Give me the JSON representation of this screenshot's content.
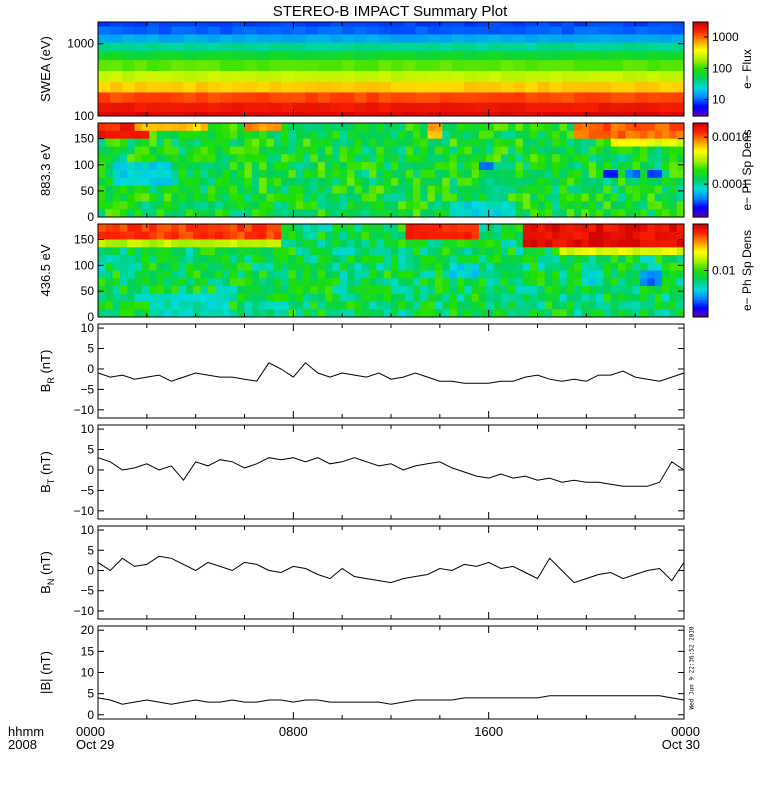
{
  "title": "STEREO-B IMPACT Summary Plot",
  "colors": {
    "axis": "#000000",
    "trace": "#000000",
    "background": "#ffffff"
  },
  "colormap": [
    "#5a00b4",
    "#0000ff",
    "#0088ff",
    "#00dcdc",
    "#00d060",
    "#22e000",
    "#aaf000",
    "#ffff00",
    "#ff9900",
    "#ff2200",
    "#cc0000"
  ],
  "stamp": "Wed Jun  9 22:36:52 2010",
  "time_axis": {
    "corner_top": "hhmm",
    "corner_bottom": "2008",
    "ticks": [
      {
        "label": "0000",
        "sub": "Oct 29",
        "hours": 0
      },
      {
        "label": "0800",
        "sub": "",
        "hours": 8
      },
      {
        "label": "1600",
        "sub": "",
        "hours": 16
      },
      {
        "label": "0000",
        "sub": "Oct 30",
        "hours": 24
      }
    ]
  },
  "chart_data": [
    {
      "type": "heatmap",
      "ylabel": "SWEA (eV)",
      "ylog": true,
      "ylim": [
        100,
        2000
      ],
      "yticks": [
        {
          "v": 1000,
          "label": "1000"
        },
        {
          "v": 100,
          "label": "100"
        }
      ],
      "colorbar": {
        "label": "e− Flux",
        "log": true,
        "range": [
          3,
          3000
        ],
        "ticks": [
          {
            "v": 1000,
            "label": "1000"
          },
          {
            "v": 100,
            "label": "100"
          },
          {
            "v": 10,
            "label": "10"
          }
        ]
      },
      "energy_profile": [
        {
          "energy": 2000,
          "value": 0.15
        },
        {
          "energy": 1500,
          "value": 0.17
        },
        {
          "energy": 1200,
          "value": 0.24
        },
        {
          "energy": 900,
          "value": 0.36
        },
        {
          "energy": 700,
          "value": 0.45
        },
        {
          "energy": 500,
          "value": 0.54
        },
        {
          "energy": 350,
          "value": 0.63
        },
        {
          "energy": 250,
          "value": 0.75
        },
        {
          "energy": 180,
          "value": 0.87
        },
        {
          "energy": 130,
          "value": 0.93
        },
        {
          "energy": 100,
          "value": 0.97
        }
      ]
    },
    {
      "type": "heatmap",
      "ylabel": "883.3 eV",
      "ylim": [
        0,
        180
      ],
      "yticks": [
        {
          "v": 150,
          "label": "150"
        },
        {
          "v": 100,
          "label": "100"
        },
        {
          "v": 50,
          "label": "50"
        },
        {
          "v": 0,
          "label": "0"
        }
      ],
      "colorbar": {
        "label": "e− Ph Sp Dens",
        "log": true,
        "range": [
          2e-05,
          0.002
        ],
        "ticks": [
          {
            "v": 0.001,
            "label": "0.0010"
          },
          {
            "v": 0.0001,
            "label": "0.0001"
          }
        ]
      },
      "base_level": 0.45,
      "features": [
        {
          "t0": 0,
          "t1": 2.0,
          "a0": 150,
          "a1": 180,
          "value": 0.92
        },
        {
          "t0": 1.5,
          "t1": 4.5,
          "a0": 160,
          "a1": 180,
          "value": 0.75
        },
        {
          "t0": 6.0,
          "t1": 7.5,
          "a0": 165,
          "a1": 180,
          "value": 0.8
        },
        {
          "t0": 13.5,
          "t1": 14.2,
          "a0": 155,
          "a1": 180,
          "value": 0.78
        },
        {
          "t0": 19.5,
          "t1": 24,
          "a0": 150,
          "a1": 180,
          "value": 0.85
        },
        {
          "t0": 21.0,
          "t1": 24,
          "a0": 130,
          "a1": 150,
          "value": 0.68
        },
        {
          "t0": 15.5,
          "t1": 16.3,
          "a0": 85,
          "a1": 110,
          "value": 0.15
        },
        {
          "t0": 20.8,
          "t1": 21.4,
          "a0": 70,
          "a1": 95,
          "value": 0.15
        },
        {
          "t0": 21.7,
          "t1": 22.3,
          "a0": 72,
          "a1": 92,
          "value": 0.18
        },
        {
          "t0": 22.6,
          "t1": 23.2,
          "a0": 70,
          "a1": 95,
          "value": 0.15
        },
        {
          "t0": 0.5,
          "t1": 3.0,
          "a0": 60,
          "a1": 100,
          "value": 0.3
        },
        {
          "t0": 14.5,
          "t1": 17.0,
          "a0": 0,
          "a1": 30,
          "value": 0.3
        }
      ]
    },
    {
      "type": "heatmap",
      "ylabel": "436.5 eV",
      "ylim": [
        0,
        180
      ],
      "yticks": [
        {
          "v": 150,
          "label": "150"
        },
        {
          "v": 100,
          "label": "100"
        },
        {
          "v": 50,
          "label": "50"
        },
        {
          "v": 0,
          "label": "0"
        }
      ],
      "colorbar": {
        "label": "e− Ph Sp Dens",
        "log": true,
        "range": [
          0.002,
          0.05
        ],
        "ticks": [
          {
            "v": 0.01,
            "label": "0.01"
          }
        ]
      },
      "base_level": 0.42,
      "features": [
        {
          "t0": 0,
          "t1": 7.5,
          "a0": 155,
          "a1": 180,
          "value": 0.88
        },
        {
          "t0": 0,
          "t1": 7.5,
          "a0": 140,
          "a1": 155,
          "value": 0.62
        },
        {
          "t0": 12.5,
          "t1": 15.5,
          "a0": 150,
          "a1": 180,
          "value": 0.9
        },
        {
          "t0": 17.5,
          "t1": 24,
          "a0": 140,
          "a1": 180,
          "value": 0.95
        },
        {
          "t0": 19.0,
          "t1": 24,
          "a0": 120,
          "a1": 140,
          "value": 0.66
        },
        {
          "t0": 14.5,
          "t1": 15.5,
          "a0": 70,
          "a1": 100,
          "value": 0.3
        },
        {
          "t0": 19.8,
          "t1": 20.6,
          "a0": 65,
          "a1": 95,
          "value": 0.3
        },
        {
          "t0": 22.2,
          "t1": 23.0,
          "a0": 65,
          "a1": 95,
          "value": 0.2
        },
        {
          "t0": 2.0,
          "t1": 5.5,
          "a0": 0,
          "a1": 40,
          "value": 0.33
        }
      ]
    },
    {
      "type": "line",
      "ylabel": "B",
      "ysub": "R",
      "yunit": "(nT)",
      "ylim": [
        -12,
        11
      ],
      "yticks": [
        {
          "v": 10,
          "label": "10"
        },
        {
          "v": 5,
          "label": "5"
        },
        {
          "v": 0,
          "label": "0"
        },
        {
          "v": -5,
          "label": "−5"
        },
        {
          "v": -10,
          "label": "−10"
        }
      ],
      "x": [
        0,
        0.5,
        1,
        1.5,
        2,
        2.5,
        3,
        3.5,
        4,
        4.5,
        5,
        5.5,
        6,
        6.5,
        7,
        7.5,
        8,
        8.5,
        9,
        9.5,
        10,
        10.5,
        11,
        11.5,
        12,
        12.5,
        13,
        13.5,
        14,
        14.5,
        15,
        15.5,
        16,
        16.5,
        17,
        17.5,
        18,
        18.5,
        19,
        19.5,
        20,
        20.5,
        21,
        21.5,
        22,
        22.5,
        23,
        23.5,
        24
      ],
      "y": [
        -1,
        -2,
        -1.5,
        -2.5,
        -2,
        -1.5,
        -3,
        -2,
        -1,
        -1.5,
        -2,
        -2,
        -2.5,
        -3,
        1.5,
        0,
        -2,
        1.5,
        -1,
        -2,
        -1,
        -1.5,
        -2,
        -1,
        -2.5,
        -2,
        -1,
        -2,
        -3,
        -3,
        -3.5,
        -3.5,
        -3.5,
        -3,
        -3,
        -2,
        -1.5,
        -2.5,
        -3,
        -2.5,
        -3,
        -1.5,
        -1.5,
        -0.5,
        -2,
        -2.5,
        -3,
        -2,
        -1
      ]
    },
    {
      "type": "line",
      "ylabel": "B",
      "ysub": "T",
      "yunit": "(nT)",
      "ylim": [
        -12,
        11
      ],
      "yticks": [
        {
          "v": 10,
          "label": "10"
        },
        {
          "v": 5,
          "label": "5"
        },
        {
          "v": 0,
          "label": "0"
        },
        {
          "v": -5,
          "label": "−5"
        },
        {
          "v": -10,
          "label": "−10"
        }
      ],
      "x": [
        0,
        0.5,
        1,
        1.5,
        2,
        2.5,
        3,
        3.5,
        4,
        4.5,
        5,
        5.5,
        6,
        6.5,
        7,
        7.5,
        8,
        8.5,
        9,
        9.5,
        10,
        10.5,
        11,
        11.5,
        12,
        12.5,
        13,
        13.5,
        14,
        14.5,
        15,
        15.5,
        16,
        16.5,
        17,
        17.5,
        18,
        18.5,
        19,
        19.5,
        20,
        20.5,
        21,
        21.5,
        22,
        22.5,
        23,
        23.5,
        24
      ],
      "y": [
        3,
        2,
        0,
        0.5,
        1.5,
        0,
        1,
        -2.5,
        2,
        1,
        2.5,
        2,
        0.5,
        1.5,
        3,
        2.5,
        3,
        2,
        3,
        1.5,
        2,
        3,
        2,
        1,
        1.5,
        0,
        1,
        1.5,
        2,
        0.5,
        -0.5,
        -1.5,
        -2,
        -1,
        -2,
        -1.5,
        -2.5,
        -2,
        -3,
        -2.5,
        -3,
        -3,
        -3.5,
        -4,
        -4,
        -4,
        -3,
        2,
        0
      ]
    },
    {
      "type": "line",
      "ylabel": "B",
      "ysub": "N",
      "yunit": "(nT)",
      "ylim": [
        -12,
        11
      ],
      "yticks": [
        {
          "v": 10,
          "label": "10"
        },
        {
          "v": 5,
          "label": "5"
        },
        {
          "v": 0,
          "label": "0"
        },
        {
          "v": -5,
          "label": "−5"
        },
        {
          "v": -10,
          "label": "−10"
        }
      ],
      "x": [
        0,
        0.5,
        1,
        1.5,
        2,
        2.5,
        3,
        3.5,
        4,
        4.5,
        5,
        5.5,
        6,
        6.5,
        7,
        7.5,
        8,
        8.5,
        9,
        9.5,
        10,
        10.5,
        11,
        11.5,
        12,
        12.5,
        13,
        13.5,
        14,
        14.5,
        15,
        15.5,
        16,
        16.5,
        17,
        17.5,
        18,
        18.5,
        19,
        19.5,
        20,
        20.5,
        21,
        21.5,
        22,
        22.5,
        23,
        23.5,
        24
      ],
      "y": [
        2,
        0,
        3,
        1,
        1.5,
        3.5,
        3,
        1.5,
        0,
        2,
        1,
        0,
        2,
        1.5,
        0,
        -0.5,
        1,
        0.5,
        -1,
        -2,
        0.5,
        -1.5,
        -2,
        -2.5,
        -3,
        -2,
        -1.5,
        -1,
        0.5,
        0,
        1.5,
        1,
        2,
        0.5,
        1,
        -0.5,
        -2,
        3,
        0,
        -3,
        -2,
        -1,
        -0.5,
        -2,
        -1,
        0,
        0.5,
        -2.5,
        2
      ]
    },
    {
      "type": "line",
      "ylabel": "|B|",
      "yunit": "(nT)",
      "ylim": [
        -1,
        21
      ],
      "yticks": [
        {
          "v": 20,
          "label": "20"
        },
        {
          "v": 15,
          "label": "15"
        },
        {
          "v": 10,
          "label": "10"
        },
        {
          "v": 5,
          "label": "5"
        },
        {
          "v": 0,
          "label": "0"
        }
      ],
      "x": [
        0,
        0.5,
        1,
        1.5,
        2,
        2.5,
        3,
        3.5,
        4,
        4.5,
        5,
        5.5,
        6,
        6.5,
        7,
        7.5,
        8,
        8.5,
        9,
        9.5,
        10,
        10.5,
        11,
        11.5,
        12,
        12.5,
        13,
        13.5,
        14,
        14.5,
        15,
        15.5,
        16,
        16.5,
        17,
        17.5,
        18,
        18.5,
        19,
        19.5,
        20,
        20.5,
        21,
        21.5,
        22,
        22.5,
        23,
        23.5,
        24
      ],
      "y": [
        4,
        3.5,
        2.5,
        3,
        3.5,
        3,
        2.5,
        3,
        3.5,
        3,
        3,
        3.5,
        3,
        3,
        3.5,
        3.5,
        3,
        3.5,
        3.5,
        3,
        3,
        3,
        3,
        3,
        2.5,
        3,
        3.5,
        3.5,
        3.5,
        3.5,
        4,
        4,
        4,
        4,
        4,
        4,
        4,
        4.5,
        4.5,
        4.5,
        4.5,
        4.5,
        4.5,
        4.5,
        4.5,
        4.5,
        4.5,
        4,
        3.5
      ]
    }
  ]
}
